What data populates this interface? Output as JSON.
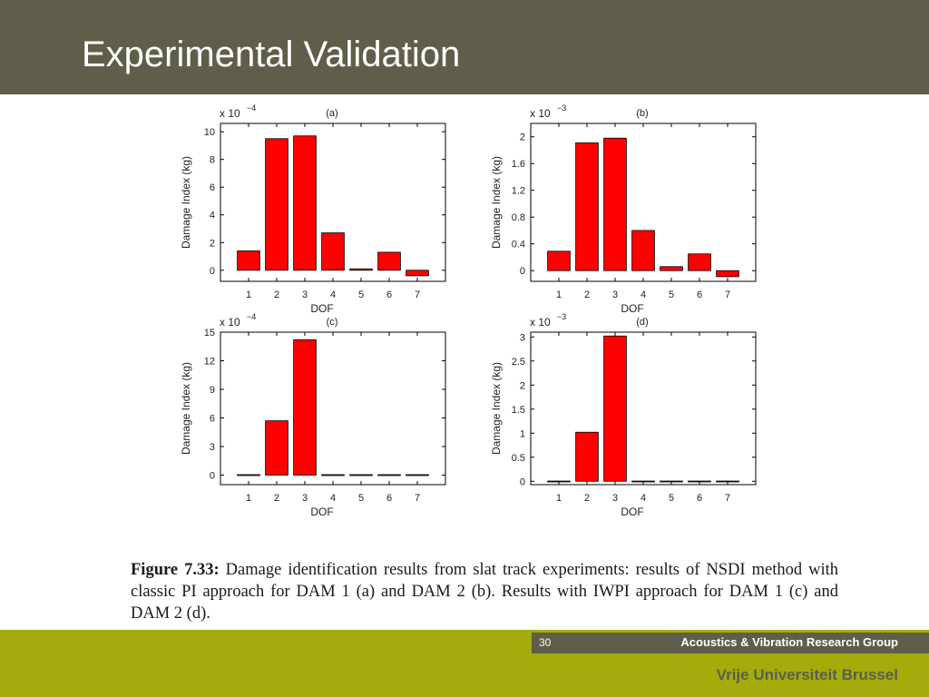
{
  "slide": {
    "title": "Experimental Validation"
  },
  "caption": {
    "label": "Figure 7.33:",
    "text": "Damage identification results from slat track experiments: results of NSDI method with classic PI approach for DAM 1 (a) and DAM 2 (b). Results with IWPI approach for DAM 1 (c) and DAM 2 (d)."
  },
  "footer": {
    "page_number": "30",
    "group": "Acoustics & Vibration Research Group",
    "university": "Vrije Universiteit Brussel"
  },
  "colors": {
    "header": "#5e5e4a",
    "footer_green": "#a3ac0b",
    "bar_fill": "#ff0000"
  },
  "chart_data": [
    {
      "type": "bar",
      "title": "(a)",
      "multiplier": "x 10",
      "exponent": "−4",
      "xlabel": "DOF",
      "ylabel": "Damage Index (kg)",
      "categories": [
        "1",
        "2",
        "3",
        "4",
        "5",
        "6",
        "7"
      ],
      "values": [
        1.4,
        9.5,
        9.7,
        2.7,
        0.1,
        1.3,
        -0.4
      ],
      "ylim": [
        -0.8,
        10.6
      ],
      "yticks": [
        0,
        2,
        4,
        6,
        8,
        10
      ],
      "ytick_labels": [
        "0",
        "2",
        "4",
        "6",
        "8",
        "10"
      ]
    },
    {
      "type": "bar",
      "title": "(b)",
      "multiplier": "x 10",
      "exponent": "−3",
      "xlabel": "DOF",
      "ylabel": "Damage Index (kg)",
      "categories": [
        "1",
        "2",
        "3",
        "4",
        "5",
        "6",
        "7"
      ],
      "values": [
        0.29,
        1.91,
        1.98,
        0.6,
        0.06,
        0.25,
        -0.09
      ],
      "ylim": [
        -0.16,
        2.2
      ],
      "yticks": [
        0,
        0.4,
        0.8,
        1.2,
        1.6,
        2
      ],
      "ytick_labels": [
        "0",
        "0.4",
        "0.8",
        "1.2",
        "1.6",
        "2"
      ]
    },
    {
      "type": "bar",
      "title": "(c)",
      "multiplier": "x 10",
      "exponent": "−4",
      "xlabel": "DOF",
      "ylabel": "Damage Index (kg)",
      "categories": [
        "1",
        "2",
        "3",
        "4",
        "5",
        "6",
        "7"
      ],
      "values": [
        0.05,
        5.7,
        14.2,
        0.05,
        0.05,
        0.05,
        0.05
      ],
      "ylim": [
        -1,
        15
      ],
      "yticks": [
        0,
        3,
        6,
        9,
        12,
        15
      ],
      "ytick_labels": [
        "0",
        "3",
        "6",
        "9",
        "12",
        "15"
      ]
    },
    {
      "type": "bar",
      "title": "(d)",
      "multiplier": "x 10",
      "exponent": "−3",
      "xlabel": "DOF",
      "ylabel": "Damage Index (kg)",
      "categories": [
        "1",
        "2",
        "3",
        "4",
        "5",
        "6",
        "7"
      ],
      "values": [
        0.005,
        1.02,
        3.02,
        0.005,
        0.005,
        0.005,
        0.005
      ],
      "ylim": [
        -0.07,
        3.1
      ],
      "yticks": [
        0,
        0.5,
        1,
        1.5,
        2,
        2.5,
        3
      ],
      "ytick_labels": [
        "0",
        "0.5",
        "1",
        "1.5",
        "2",
        "2.5",
        "3"
      ]
    }
  ]
}
